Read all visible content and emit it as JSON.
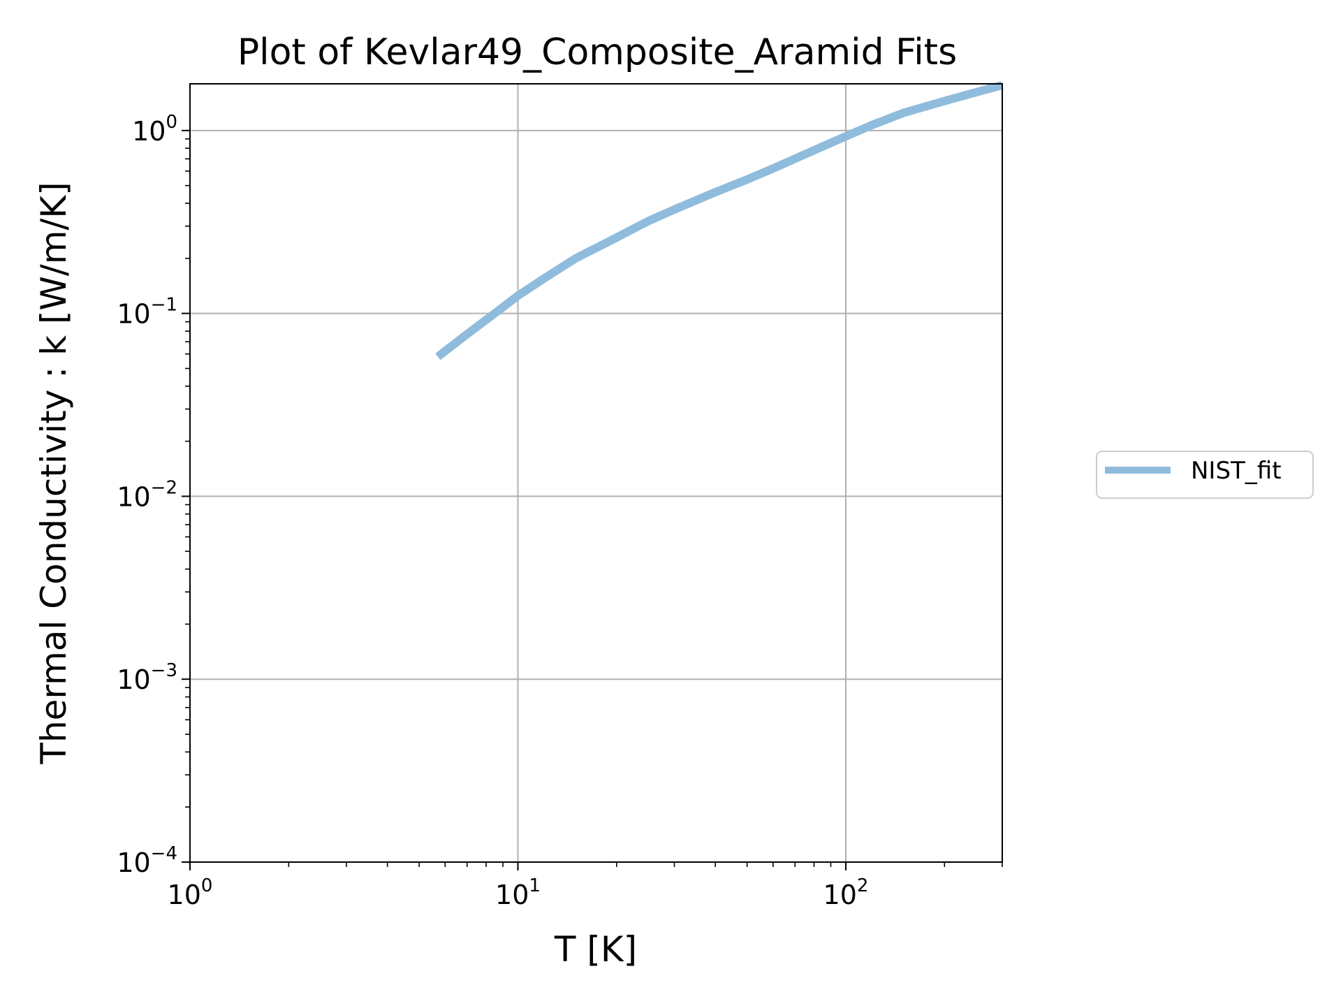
{
  "chart_data": {
    "type": "line",
    "title": "Plot of Kevlar49_Composite_Aramid Fits",
    "xlabel": "T [K]",
    "ylabel": "Thermal Conductivity : k [W/m/K]",
    "xscale": "log",
    "yscale": "log",
    "xlim": [
      1,
      300
    ],
    "ylim": [
      0.0001,
      1.8
    ],
    "grid": true,
    "legend_position": "right, outside plot",
    "x_ticks": [
      {
        "base": "10",
        "exp": "0",
        "value": 1
      },
      {
        "base": "10",
        "exp": "1",
        "value": 10
      },
      {
        "base": "10",
        "exp": "2",
        "value": 100
      }
    ],
    "y_ticks": [
      {
        "base": "10",
        "exp": "−4",
        "value": 0.0001
      },
      {
        "base": "10",
        "exp": "−3",
        "value": 0.001
      },
      {
        "base": "10",
        "exp": "−2",
        "value": 0.01
      },
      {
        "base": "10",
        "exp": "−1",
        "value": 0.1
      },
      {
        "base": "10",
        "exp": "0",
        "value": 1
      }
    ],
    "series": [
      {
        "name": "NIST_fit",
        "color": "#8fbcdc",
        "x": [
          5.7,
          7,
          8.5,
          10,
          12,
          15,
          20,
          25,
          30,
          40,
          50,
          60,
          80,
          100,
          120,
          150,
          200,
          250,
          300
        ],
        "y": [
          0.058,
          0.077,
          0.1,
          0.125,
          0.155,
          0.2,
          0.26,
          0.32,
          0.37,
          0.46,
          0.54,
          0.62,
          0.78,
          0.93,
          1.07,
          1.25,
          1.45,
          1.62,
          1.77
        ]
      }
    ]
  }
}
